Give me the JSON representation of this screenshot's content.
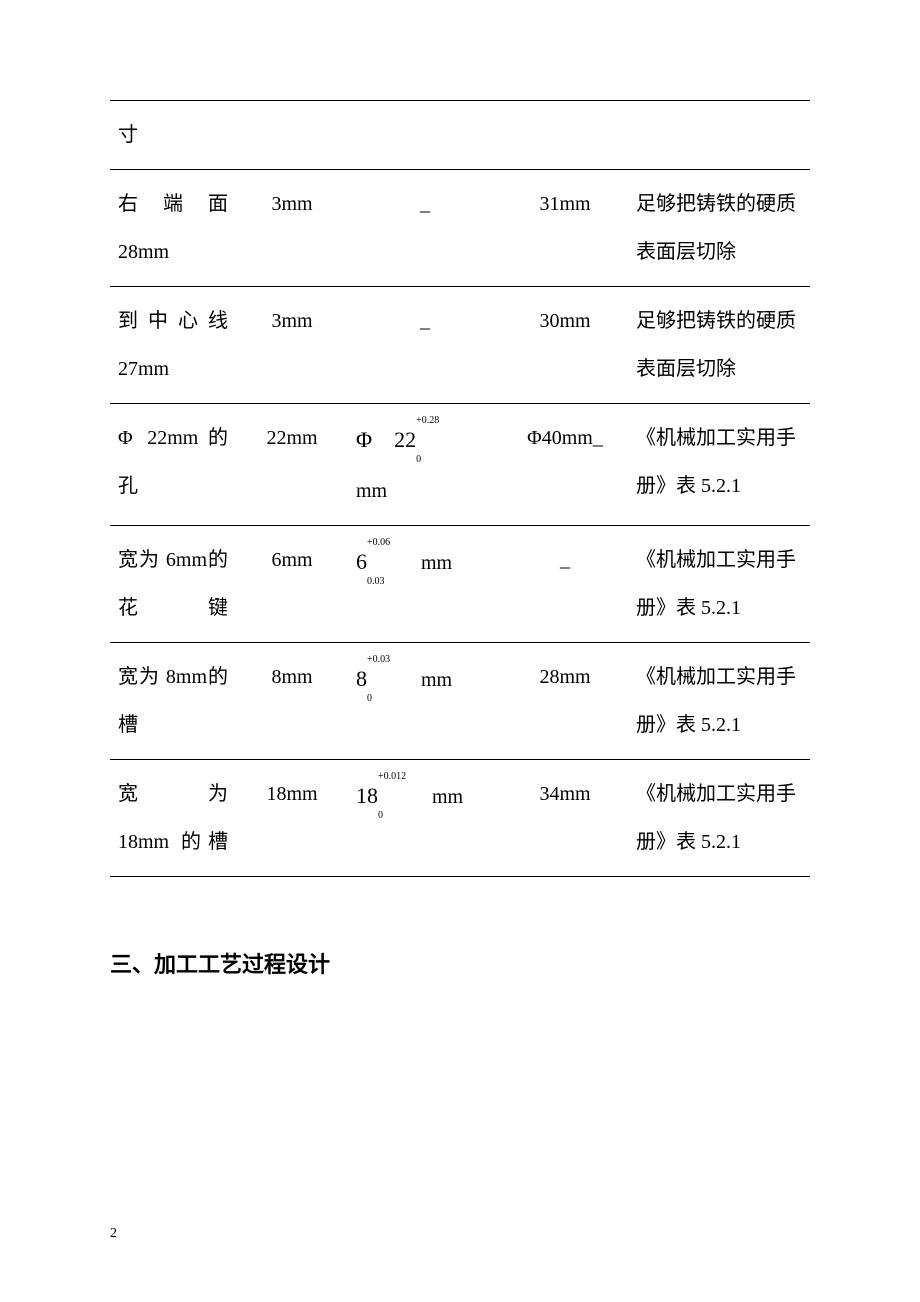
{
  "table": {
    "column_widths": [
      "18%",
      "16%",
      "22%",
      "18%",
      "26%"
    ],
    "rows": [
      {
        "c0": "寸",
        "c1": "",
        "c2_type": "plain",
        "c2_text": "",
        "c3": "",
        "c4": ""
      },
      {
        "c0": "右端面28mm",
        "c1": "3mm",
        "c2_type": "dash",
        "c2_text": "_",
        "c3": "31mm",
        "c4": "足够把铸铁的硬质表面层切除"
      },
      {
        "c0": "到中心线27mm",
        "c1": "3mm",
        "c2_type": "dash",
        "c2_text": "_",
        "c3": "30mm",
        "c4": "足够把铸铁的硬质表面层切除"
      },
      {
        "c0": "Φ 22mm的孔",
        "c1": "22mm",
        "c2_type": "tol",
        "c2_prefix": "Φ　22",
        "c2_sup": "+0.28",
        "c2_sub": "0",
        "c2_suffix": "mm",
        "c2_break": true,
        "c3": "Φ40mm_",
        "c4": "《机械加工实用手册》表 5.2.1"
      },
      {
        "c0": "宽为 6mm的花键",
        "c1": "6mm",
        "c2_type": "tol",
        "c2_prefix": "6",
        "c2_sup": "+0.06",
        "c2_sub": "0.03",
        "c2_suffix": "　mm",
        "c2_break": false,
        "c3": "_",
        "c4": "《机械加工实用手册》表 5.2.1"
      },
      {
        "c0": "宽为 8mm的槽",
        "c1": "8mm",
        "c2_type": "tol",
        "c2_prefix": "8",
        "c2_sup": "+0.03",
        "c2_sub": "0",
        "c2_suffix": "　mm",
        "c2_break": false,
        "c3": "28mm",
        "c4": "《机械加工实用手册》表 5.2.1"
      },
      {
        "c0": "宽　为18mm 的槽",
        "c1": "18mm",
        "c2_type": "tol",
        "c2_prefix": "18",
        "c2_sup": "+0.012",
        "c2_sub": "0",
        "c2_suffix": "　mm",
        "c2_break": false,
        "c3": "34mm",
        "c4": "《机械加工实用手册》表 5.2.1"
      }
    ],
    "border_color": "#000000",
    "font_size": 20,
    "line_height": 2.4
  },
  "heading": "三、加工工艺过程设计",
  "page_number": "2",
  "colors": {
    "background": "#ffffff",
    "text": "#000000"
  }
}
